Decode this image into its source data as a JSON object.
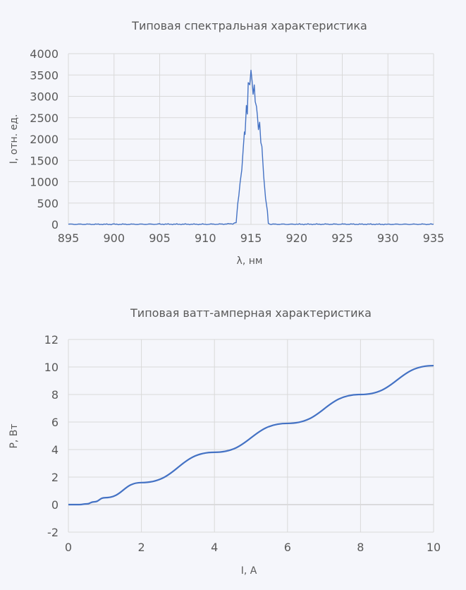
{
  "chart_data": [
    {
      "type": "line",
      "title": "Типовая спектральная характеристика",
      "xlabel": "λ, нм",
      "ylabel": "I, отн. ед.",
      "xlim": [
        895,
        935
      ],
      "ylim": [
        0,
        4000
      ],
      "xticks": [
        895,
        900,
        905,
        910,
        915,
        920,
        925,
        930,
        935
      ],
      "yticks": [
        0,
        500,
        1000,
        1500,
        2000,
        2500,
        3000,
        3500,
        4000
      ],
      "grid": true,
      "line_color": "#4472c4",
      "series": [
        {
          "x": [
            895,
            900,
            905,
            910,
            912,
            913,
            913.38,
            913.55,
            913.8,
            914.0,
            914.15,
            914.28,
            914.35,
            914.5,
            914.6,
            914.7,
            914.87,
            915.0,
            915.12,
            915.23,
            915.36,
            915.46,
            915.6,
            915.7,
            915.82,
            915.95,
            916.08,
            916.2,
            916.4,
            916.6,
            916.8,
            916.9,
            917.1,
            920,
            925,
            930,
            935
          ],
          "y": [
            5,
            3,
            6,
            4,
            8,
            15,
            40,
            435,
            930,
            1290,
            1820,
            2200,
            2100,
            2750,
            2560,
            3330,
            3300,
            3630,
            3350,
            3030,
            3260,
            2880,
            2770,
            2550,
            2220,
            2400,
            1920,
            1820,
            1100,
            600,
            330,
            30,
            5,
            4,
            6,
            3,
            5
          ]
        }
      ]
    },
    {
      "type": "line",
      "title": "Типовая ватт-амперная характеристика",
      "xlabel": "I, A",
      "ylabel": "P, Вт",
      "xlim": [
        0,
        10
      ],
      "ylim": [
        -2,
        12
      ],
      "xticks": [
        0,
        2,
        4,
        6,
        8,
        10
      ],
      "yticks": [
        -2,
        0,
        2,
        4,
        6,
        8,
        10,
        12
      ],
      "grid": true,
      "line_color": "#4472c4",
      "series": [
        {
          "x": [
            0,
            0.3,
            0.5,
            0.7,
            1,
            2,
            4,
            6,
            8,
            10
          ],
          "y": [
            0,
            0,
            0.05,
            0.2,
            0.5,
            1.6,
            3.8,
            5.9,
            8.0,
            10.1
          ]
        }
      ]
    }
  ]
}
